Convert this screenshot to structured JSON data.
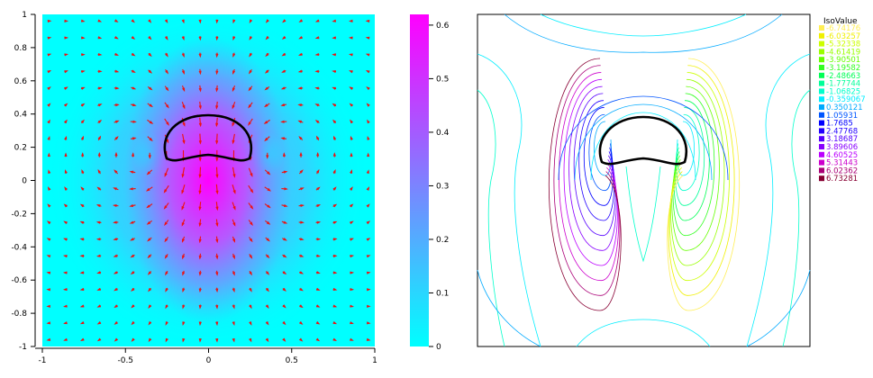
{
  "chart_data": [
    {
      "type": "heatmap",
      "title": "",
      "xlabel": "",
      "ylabel": "",
      "xlim": [
        -1,
        1
      ],
      "ylim": [
        -1,
        1
      ],
      "x_ticks": [
        "-1",
        "-0.5",
        "0",
        "0.5",
        "1"
      ],
      "y_ticks": [
        "1",
        "0.8",
        "0.6",
        "0.4",
        "0.2",
        "0",
        "-0.2",
        "-0.4",
        "-0.6",
        "-0.8",
        "-1"
      ],
      "colorbar": {
        "range": [
          0,
          0.62
        ],
        "ticks": [
          "0.6",
          "0.5",
          "0.4",
          "0.3",
          "0.2",
          "0.1",
          "0"
        ],
        "colors": [
          "#00ffff",
          "#ff00ff"
        ]
      },
      "overlay": "velocity vector field (red arrows) and closed obstacle curve (black)"
    },
    {
      "type": "contour",
      "title": "",
      "legend_title": "IsoValue",
      "isovalues": [
        {
          "label": "-6.74176",
          "color": "#ffee55"
        },
        {
          "label": "-6.03257",
          "color": "#f0f000"
        },
        {
          "label": "-5.32338",
          "color": "#ccff00"
        },
        {
          "label": "-4.61419",
          "color": "#99ff00"
        },
        {
          "label": "-3.90501",
          "color": "#66ff00"
        },
        {
          "label": "-3.19582",
          "color": "#33ff22"
        },
        {
          "label": "-2.48663",
          "color": "#00ff55"
        },
        {
          "label": "-1.77744",
          "color": "#00ff99"
        },
        {
          "label": "-1.06825",
          "color": "#00ffcc"
        },
        {
          "label": "-0.359067",
          "color": "#00eeff"
        },
        {
          "label": "0.350121",
          "color": "#00aaff"
        },
        {
          "label": "1.05931",
          "color": "#0055ff"
        },
        {
          "label": "1.7685",
          "color": "#0000ff"
        },
        {
          "label": "2.47768",
          "color": "#2200ff"
        },
        {
          "label": "3.18687",
          "color": "#5500ff"
        },
        {
          "label": "3.89606",
          "color": "#8800ff"
        },
        {
          "label": "4.60525",
          "color": "#bb00ff"
        },
        {
          "label": "5.31443",
          "color": "#cc00cc"
        },
        {
          "label": "6.02362",
          "color": "#aa0077"
        },
        {
          "label": "6.73281",
          "color": "#880033"
        }
      ]
    }
  ]
}
